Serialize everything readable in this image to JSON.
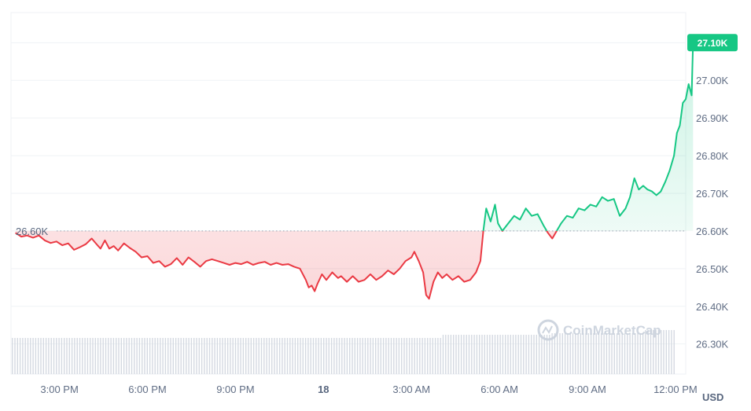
{
  "chart_data": {
    "type": "area",
    "currency_label": "USD",
    "watermark": "CoinMarketCap",
    "reference": {
      "value": 26.6,
      "label": "26.60K"
    },
    "current": {
      "value": 27.1,
      "label": "27.10K"
    },
    "y_ticks": [
      "26.30K",
      "26.40K",
      "26.50K",
      "26.60K",
      "26.70K",
      "26.80K",
      "26.90K",
      "27.00K"
    ],
    "y_tick_values": [
      26.3,
      26.4,
      26.5,
      26.6,
      26.7,
      26.8,
      26.9,
      27.0
    ],
    "x_ticks": [
      "3:00 PM",
      "6:00 PM",
      "9:00 PM",
      "18",
      "3:00 AM",
      "6:00 AM",
      "9:00 AM",
      "12:00 PM"
    ],
    "x_tick_hours": [
      0,
      3,
      6,
      9,
      12,
      15,
      18,
      21
    ],
    "bold_x_tick": "18",
    "xlim_hours": [
      -1.65,
      21.35
    ],
    "ylim": [
      26.22,
      27.18
    ],
    "colors": {
      "up": "#16c784",
      "down": "#ea3943",
      "axis_badge": "#16c784"
    },
    "series": [
      {
        "values": [
          [
            -1.5,
            26.595
          ],
          [
            -1.3,
            26.585
          ],
          [
            -1.1,
            26.588
          ],
          [
            -0.9,
            26.582
          ],
          [
            -0.7,
            26.588
          ],
          [
            -0.5,
            26.575
          ],
          [
            -0.3,
            26.568
          ],
          [
            -0.1,
            26.572
          ],
          [
            0.1,
            26.562
          ],
          [
            0.3,
            26.567
          ],
          [
            0.5,
            26.55
          ],
          [
            0.7,
            26.557
          ],
          [
            0.9,
            26.565
          ],
          [
            1.1,
            26.58
          ],
          [
            1.3,
            26.562
          ],
          [
            1.4,
            26.553
          ],
          [
            1.55,
            26.575
          ],
          [
            1.7,
            26.553
          ],
          [
            1.85,
            26.56
          ],
          [
            2.0,
            26.548
          ],
          [
            2.2,
            26.567
          ],
          [
            2.4,
            26.555
          ],
          [
            2.6,
            26.545
          ],
          [
            2.8,
            26.53
          ],
          [
            3.0,
            26.533
          ],
          [
            3.2,
            26.515
          ],
          [
            3.4,
            26.52
          ],
          [
            3.6,
            26.505
          ],
          [
            3.8,
            26.512
          ],
          [
            4.0,
            26.528
          ],
          [
            4.2,
            26.51
          ],
          [
            4.4,
            26.53
          ],
          [
            4.6,
            26.518
          ],
          [
            4.8,
            26.505
          ],
          [
            5.0,
            26.52
          ],
          [
            5.2,
            26.525
          ],
          [
            5.4,
            26.52
          ],
          [
            5.6,
            26.515
          ],
          [
            5.8,
            26.51
          ],
          [
            6.0,
            26.515
          ],
          [
            6.2,
            26.512
          ],
          [
            6.4,
            26.518
          ],
          [
            6.6,
            26.51
          ],
          [
            6.8,
            26.515
          ],
          [
            7.0,
            26.518
          ],
          [
            7.2,
            26.51
          ],
          [
            7.4,
            26.515
          ],
          [
            7.6,
            26.51
          ],
          [
            7.8,
            26.512
          ],
          [
            8.0,
            26.505
          ],
          [
            8.2,
            26.5
          ],
          [
            8.4,
            26.47
          ],
          [
            8.5,
            26.45
          ],
          [
            8.6,
            26.455
          ],
          [
            8.7,
            26.44
          ],
          [
            8.8,
            26.46
          ],
          [
            8.95,
            26.485
          ],
          [
            9.1,
            26.47
          ],
          [
            9.3,
            26.49
          ],
          [
            9.5,
            26.475
          ],
          [
            9.6,
            26.48
          ],
          [
            9.8,
            26.465
          ],
          [
            10.0,
            26.48
          ],
          [
            10.2,
            26.465
          ],
          [
            10.4,
            26.47
          ],
          [
            10.6,
            26.485
          ],
          [
            10.8,
            26.47
          ],
          [
            11.0,
            26.48
          ],
          [
            11.2,
            26.495
          ],
          [
            11.4,
            26.485
          ],
          [
            11.6,
            26.5
          ],
          [
            11.8,
            26.52
          ],
          [
            12.0,
            26.53
          ],
          [
            12.1,
            26.545
          ],
          [
            12.25,
            26.52
          ],
          [
            12.4,
            26.49
          ],
          [
            12.5,
            26.43
          ],
          [
            12.6,
            26.42
          ],
          [
            12.75,
            26.465
          ],
          [
            12.9,
            26.49
          ],
          [
            13.05,
            26.475
          ],
          [
            13.2,
            26.485
          ],
          [
            13.4,
            26.47
          ],
          [
            13.6,
            26.48
          ],
          [
            13.8,
            26.465
          ],
          [
            14.0,
            26.47
          ],
          [
            14.2,
            26.49
          ],
          [
            14.35,
            26.52
          ],
          [
            14.45,
            26.6
          ],
          [
            14.55,
            26.66
          ],
          [
            14.7,
            26.625
          ],
          [
            14.85,
            26.67
          ],
          [
            14.95,
            26.62
          ],
          [
            15.1,
            26.6
          ],
          [
            15.3,
            26.62
          ],
          [
            15.5,
            26.64
          ],
          [
            15.7,
            26.63
          ],
          [
            15.9,
            26.66
          ],
          [
            16.1,
            26.64
          ],
          [
            16.3,
            26.645
          ],
          [
            16.5,
            26.615
          ],
          [
            16.65,
            26.595
          ],
          [
            16.8,
            26.58
          ],
          [
            16.95,
            26.6
          ],
          [
            17.1,
            26.62
          ],
          [
            17.3,
            26.64
          ],
          [
            17.5,
            26.635
          ],
          [
            17.7,
            26.66
          ],
          [
            17.9,
            26.655
          ],
          [
            18.1,
            26.67
          ],
          [
            18.3,
            26.665
          ],
          [
            18.5,
            26.69
          ],
          [
            18.7,
            26.68
          ],
          [
            18.9,
            26.685
          ],
          [
            19.1,
            26.64
          ],
          [
            19.3,
            26.66
          ],
          [
            19.45,
            26.69
          ],
          [
            19.6,
            26.74
          ],
          [
            19.75,
            26.71
          ],
          [
            19.9,
            26.72
          ],
          [
            20.05,
            26.71
          ],
          [
            20.2,
            26.705
          ],
          [
            20.35,
            26.695
          ],
          [
            20.5,
            26.705
          ],
          [
            20.65,
            26.73
          ],
          [
            20.8,
            26.76
          ],
          [
            20.95,
            26.8
          ],
          [
            21.05,
            26.86
          ],
          [
            21.15,
            26.88
          ],
          [
            21.25,
            26.94
          ],
          [
            21.35,
            26.95
          ],
          [
            21.45,
            26.99
          ],
          [
            21.55,
            26.96
          ],
          [
            21.6,
            27.1
          ]
        ]
      }
    ]
  }
}
